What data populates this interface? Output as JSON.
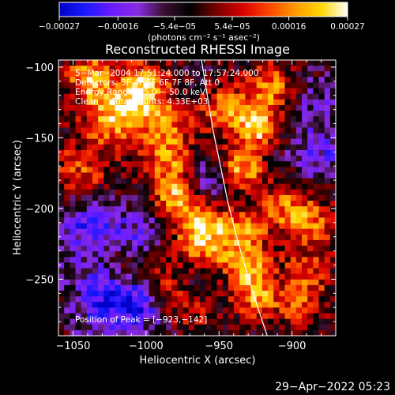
{
  "chart_data": {
    "type": "heatmap",
    "title": "Reconstructed RHESSI Image",
    "xlabel": "Heliocentric X (arcsec)",
    "ylabel": "Heliocentric Y (arcsec)",
    "xlim": [
      -1060,
      -870
    ],
    "ylim": [
      -290,
      -95
    ],
    "x_ticks": [
      -1050,
      -1000,
      -950,
      -900
    ],
    "x_tick_labels": [
      "−1050",
      "−1000",
      "−950",
      "−900"
    ],
    "y_ticks": [
      -100,
      -150,
      -200,
      -250
    ],
    "y_tick_labels": [
      "−100",
      "−150",
      "−200",
      "−250"
    ],
    "colorbar": {
      "range": [
        -0.00027,
        0.00027
      ],
      "ticks": [
        -0.00027,
        -0.00016,
        -5.4e-05,
        5.4e-05,
        0.00016,
        0.00027
      ],
      "tick_labels": [
        "−0.00027",
        "−0.00016",
        "−5.4e−05",
        "5.4e−05",
        "0.00016",
        "0.00027"
      ],
      "unit_label": "(photons cm⁻² s⁻¹ asec⁻²)",
      "colors": [
        "#0000c8",
        "#1a1aff",
        "#6a1aff",
        "#8a2be2",
        "#3a1030",
        "#000000",
        "#7a0000",
        "#d80000",
        "#ff4500",
        "#ff9900",
        "#ffd700",
        "#ffffff"
      ]
    },
    "annotations": [
      "5−Mar−2004 17:51:24.000 to 17:57:24.000",
      "Detectors: 3F 4F 5F 6F 7F 8F, Att 0",
      "Energy Range: 25.0 − 50.0 keV",
      "Clean     Total counts: 4.33E+03"
    ],
    "peak_label": "Position of Peak = [−923,−142]",
    "peak_position": [
      -923,
      -142
    ],
    "limb_curve": {
      "x": [
        -962,
        -958,
        -954,
        -949,
        -944,
        -938,
        -931,
        -924,
        -917
      ],
      "y": [
        -95,
        -120,
        -145,
        -170,
        -195,
        -220,
        -245,
        -268,
        -290
      ]
    },
    "bright_sources": [
      {
        "x": -1038,
        "y": -108,
        "intensity": 0.85,
        "sigma": 12
      },
      {
        "x": -1025,
        "y": -140,
        "intensity": 0.65,
        "sigma": 14
      },
      {
        "x": -1045,
        "y": -175,
        "intensity": 0.55,
        "sigma": 14
      },
      {
        "x": -1000,
        "y": -112,
        "intensity": 0.75,
        "sigma": 12
      },
      {
        "x": -1010,
        "y": -128,
        "intensity": 0.6,
        "sigma": 12
      },
      {
        "x": -985,
        "y": -165,
        "intensity": 0.65,
        "sigma": 12
      },
      {
        "x": -980,
        "y": -190,
        "intensity": 0.75,
        "sigma": 11
      },
      {
        "x": -965,
        "y": -210,
        "intensity": 0.8,
        "sigma": 12
      },
      {
        "x": -958,
        "y": -230,
        "intensity": 0.6,
        "sigma": 12
      },
      {
        "x": -985,
        "y": -140,
        "intensity": 0.55,
        "sigma": 12
      },
      {
        "x": -945,
        "y": -130,
        "intensity": 0.7,
        "sigma": 12
      },
      {
        "x": -935,
        "y": -172,
        "intensity": 0.9,
        "sigma": 11
      },
      {
        "x": -923,
        "y": -142,
        "intensity": 1.0,
        "sigma": 9
      },
      {
        "x": -915,
        "y": -115,
        "intensity": 0.7,
        "sigma": 12
      },
      {
        "x": -935,
        "y": -215,
        "intensity": 0.65,
        "sigma": 12
      },
      {
        "x": -930,
        "y": -240,
        "intensity": 0.7,
        "sigma": 11
      },
      {
        "x": -925,
        "y": -262,
        "intensity": 0.7,
        "sigma": 11
      },
      {
        "x": -905,
        "y": -200,
        "intensity": 0.6,
        "sigma": 12
      },
      {
        "x": -885,
        "y": -210,
        "intensity": 0.55,
        "sigma": 12
      },
      {
        "x": -890,
        "y": -245,
        "intensity": 0.5,
        "sigma": 12
      },
      {
        "x": -895,
        "y": -270,
        "intensity": 0.5,
        "sigma": 12
      },
      {
        "x": -990,
        "y": -255,
        "intensity": 0.55,
        "sigma": 12
      },
      {
        "x": -970,
        "y": -270,
        "intensity": 0.45,
        "sigma": 12
      },
      {
        "x": -1015,
        "y": -240,
        "intensity": 0.35,
        "sigma": 12
      }
    ],
    "dark_sources": [
      {
        "x": -1025,
        "y": -265,
        "intensity": -0.75,
        "sigma": 16
      },
      {
        "x": -1040,
        "y": -215,
        "intensity": -0.55,
        "sigma": 18
      },
      {
        "x": -1000,
        "y": -265,
        "intensity": -0.55,
        "sigma": 14
      },
      {
        "x": -965,
        "y": -255,
        "intensity": -0.25,
        "sigma": 12
      },
      {
        "x": -955,
        "y": -180,
        "intensity": -0.45,
        "sigma": 12
      },
      {
        "x": -1005,
        "y": -220,
        "intensity": -0.35,
        "sigma": 12
      },
      {
        "x": -880,
        "y": -160,
        "intensity": -0.45,
        "sigma": 14
      },
      {
        "x": -885,
        "y": -125,
        "intensity": -0.3,
        "sigma": 12
      }
    ]
  },
  "footer": {
    "timestamp": "29−Apr−2022 05:23"
  }
}
